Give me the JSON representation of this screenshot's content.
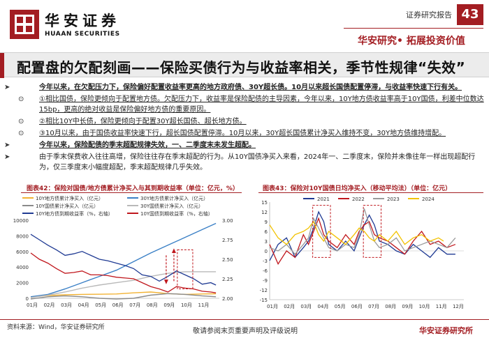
{
  "header": {
    "brand_cn": "华安证券",
    "brand_en": "HUAAN SECURITIES",
    "doc_type": "证券研究报告",
    "page_number": "43",
    "slogan": "华安研究• 拓展投资价值",
    "brand_color": "#a31d22"
  },
  "title": "配置盘的欠配刻画——保险买债行为与收益率相关，季节性规律“失效”",
  "bullets": [
    {
      "marker": "➤",
      "level": 1,
      "style": "bold-underline",
      "text": "今年以来，在欠配压力下，保险偏好配置收益率更高的地方政府债、30Y超长债。10月以来超长国债配置停滞，与收益率快速下行有关。"
    },
    {
      "marker": "⊙",
      "level": 2,
      "style": "underline",
      "text": "①相比国债，保险更倾向于配置地方债。欠配压力下，收益率是保险配债的主导因素，今年以来，10Y地方债收益率高于10Y国债，利差中位数达15bp，更高的绝对收益是保险偏好地方债的重要原因。"
    },
    {
      "marker": "⊙",
      "level": 2,
      "style": "underline",
      "text": "②相比10Y中长债，保险更倾向于配置30Y超长国债、超长地方债。"
    },
    {
      "marker": "⊙",
      "level": 2,
      "style": "underline",
      "text": "③10月以来，由于国债收益率快速下行，超长国债配置停滞。10月以来，30Y超长国债累计净买入维持不变，30Y地方债维持增配。"
    },
    {
      "marker": "➤",
      "level": 1,
      "style": "bold-underline",
      "text": "今年以来，保险配债的季末超配规律失效，一、二季度末未发生超配。"
    },
    {
      "marker": "➤",
      "level": 1,
      "style": "plain",
      "text": "由于季末保费收入往往高增，保险往往存在季末超配的行为。从10Y国债净买入来看，2024年一、二季度末，保险并未像往年一样出现超配行为，仅三季度末小幅度超配，季末超配规律几乎失效。"
    }
  ],
  "chart_data": [
    {
      "caption": "图表42：保险对国债/地方债累计净买入与其到期收益率（单位：亿元，%）",
      "type": "line",
      "x_ticks": [
        "01月",
        "02月",
        "03月",
        "04月",
        "05月",
        "06月",
        "07月",
        "08月",
        "09月",
        "10月",
        "11月"
      ],
      "y_left_ticks": [
        "0",
        "2000",
        "4000",
        "6000",
        "8000",
        "10000"
      ],
      "y_left_lim": [
        0,
        10000
      ],
      "y_right_ticks": [
        "2.00",
        "2.25",
        "2.50",
        "2.75",
        "3.00"
      ],
      "y_right_lim": [
        2.0,
        3.0
      ],
      "series": [
        {
          "name": "10Y地方债累计净买入（亿元）",
          "axis": "left",
          "color": "#f2b233",
          "x": [
            0,
            1,
            2,
            3,
            4,
            5,
            6,
            7,
            8,
            9,
            10,
            10.8
          ],
          "values": [
            200,
            350,
            450,
            500,
            520,
            550,
            700,
            800,
            600,
            500,
            550,
            580
          ]
        },
        {
          "name": "30Y地方债累计净买入（亿元）",
          "axis": "left",
          "color": "#3b80c6",
          "x": [
            0,
            1,
            2,
            3,
            4,
            5,
            6,
            7,
            8,
            9,
            10,
            10.8
          ],
          "values": [
            200,
            500,
            1200,
            2000,
            2800,
            3600,
            4700,
            5800,
            6800,
            7800,
            8800,
            9600
          ]
        },
        {
          "name": "10Y国债累计净买入（亿元）",
          "axis": "left",
          "color": "#8a8a8a",
          "x": [
            0,
            1,
            2,
            3,
            4,
            5,
            6,
            7,
            8,
            9,
            10,
            10.8
          ],
          "values": [
            -100,
            200,
            300,
            200,
            0,
            -100,
            0,
            400,
            600,
            500,
            300,
            200
          ]
        },
        {
          "name": "30Y国债累计净买入（亿元）",
          "axis": "left",
          "color": "#b9b9b9",
          "x": [
            0,
            1,
            2,
            3,
            4,
            5,
            6,
            7,
            8,
            9,
            10,
            10.8
          ],
          "values": [
            100,
            400,
            800,
            1300,
            1700,
            2000,
            2300,
            2800,
            3200,
            3400,
            3400,
            3400
          ]
        },
        {
          "name": "10Y地方债到期收益率（%，右轴）",
          "axis": "right",
          "color": "#1f3a93",
          "x": [
            0,
            0.5,
            1,
            1.5,
            2,
            2.5,
            3,
            3.5,
            4,
            4.5,
            5,
            5.5,
            6,
            6.5,
            7,
            7.5,
            8,
            8.5,
            9,
            9.5,
            10,
            10.5,
            10.8
          ],
          "values": [
            2.82,
            2.75,
            2.68,
            2.62,
            2.55,
            2.57,
            2.6,
            2.55,
            2.5,
            2.48,
            2.45,
            2.42,
            2.38,
            2.3,
            2.28,
            2.22,
            2.28,
            2.35,
            2.3,
            2.25,
            2.18,
            2.2,
            2.17
          ]
        },
        {
          "name": "10Y国债到期收益率（%，右轴）",
          "axis": "right",
          "color": "#c0171d",
          "x": [
            0,
            0.5,
            1,
            1.5,
            2,
            2.5,
            3,
            3.5,
            4,
            4.5,
            5,
            5.5,
            6,
            6.5,
            7,
            7.5,
            8,
            8.5,
            9,
            9.5,
            10,
            10.5,
            10.8
          ],
          "values": [
            2.58,
            2.5,
            2.45,
            2.38,
            2.32,
            2.33,
            2.35,
            2.3,
            2.3,
            2.29,
            2.27,
            2.26,
            2.25,
            2.2,
            2.15,
            2.12,
            2.08,
            2.15,
            2.13,
            2.12,
            2.09,
            2.08,
            2.07
          ]
        }
      ],
      "annotations": [
        "dashed-box-oct",
        "arrow-down-aug",
        "arrow-up-sep"
      ]
    },
    {
      "caption": "图表43：保险对10Y国债日均净买入（移动平均法）（单位：亿元）",
      "type": "line",
      "x_ticks": [
        "01月",
        "02月",
        "03月",
        "04月",
        "05月",
        "06月",
        "07月",
        "08月",
        "09月",
        "10月",
        "11月",
        "12月"
      ],
      "y_lim": [
        -15,
        15
      ],
      "y_ticks": [
        "-15",
        "-12",
        "-9",
        "-6",
        "-3",
        "0",
        "3",
        "6",
        "9",
        "12",
        "15"
      ],
      "series": [
        {
          "name": "2021",
          "color": "#1f3a93",
          "x": [
            0,
            0.5,
            1,
            1.5,
            2,
            2.3,
            2.6,
            2.9,
            3.2,
            3.5,
            4,
            4.5,
            5,
            5.3,
            5.6,
            5.9,
            6.2,
            6.5,
            7,
            7.5,
            8,
            8.5,
            9,
            9.5,
            10,
            10.5,
            11
          ],
          "values": [
            -3,
            2,
            4,
            -2,
            1,
            3,
            7,
            12,
            9,
            2,
            0,
            3,
            0,
            4,
            8,
            11,
            8,
            3,
            2,
            0,
            -1,
            2,
            0,
            -2,
            1,
            -1,
            -1
          ]
        },
        {
          "name": "2022",
          "color": "#c0171d",
          "x": [
            0,
            0.5,
            1,
            1.5,
            2,
            2.3,
            2.6,
            2.9,
            3.2,
            3.5,
            4,
            4.5,
            5,
            5.3,
            5.6,
            5.9,
            6.2,
            6.5,
            7,
            7.5,
            8,
            8.5,
            9,
            9.5,
            10,
            10.5,
            11
          ],
          "values": [
            2,
            -4,
            0,
            -2,
            5,
            2,
            6,
            10,
            5,
            3,
            1,
            5,
            2,
            6,
            8,
            9,
            5,
            4,
            3,
            1,
            -1,
            3,
            6,
            2,
            3,
            1,
            2
          ]
        },
        {
          "name": "2023",
          "color": "#9a9a9a",
          "x": [
            0,
            0.5,
            1,
            1.5,
            2,
            2.3,
            2.6,
            2.9,
            3.2,
            3.5,
            4,
            4.5,
            5,
            5.3,
            5.6,
            5.9,
            6.2,
            6.5,
            7,
            7.5,
            8,
            8.5,
            9,
            9.5,
            10,
            10.5,
            11
          ],
          "values": [
            1,
            0,
            2,
            -1,
            2,
            4,
            10,
            7,
            4,
            1,
            0,
            2,
            1,
            5,
            13,
            8,
            3,
            1,
            2,
            4,
            0,
            1,
            2,
            3,
            2,
            1,
            4
          ]
        },
        {
          "name": "2024",
          "color": "#f2c200",
          "x": [
            0,
            0.5,
            1,
            1.5,
            2,
            2.3,
            2.6,
            2.9,
            3.2,
            3.5,
            4,
            4.5,
            5,
            5.3,
            5.6,
            5.9,
            6.2,
            6.5,
            7,
            7.5,
            8,
            8.5,
            9,
            9.5,
            10,
            10.3
          ],
          "values": [
            8,
            4,
            2,
            5,
            6,
            7,
            9,
            5,
            3,
            6,
            4,
            2,
            5,
            7,
            6,
            4,
            3,
            5,
            3,
            6,
            2,
            4,
            5,
            3,
            4,
            3
          ]
        }
      ],
      "annotations": [
        "dashed-box-mar-apr",
        "dashed-box-jun-jul"
      ]
    }
  ],
  "footer": {
    "source": "资料来源：Wind，华安证券研究所",
    "disclaimer": "敬请参阅末页重要声明及评级说明",
    "brand": "华安证券研究所"
  }
}
